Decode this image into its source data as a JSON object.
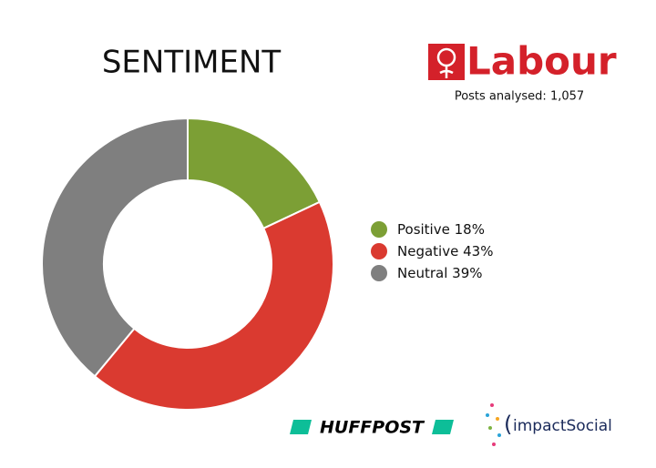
{
  "chart_data": {
    "type": "pie",
    "title": "SENTIMENT",
    "brand": "Labour",
    "subtitle": "Posts analysed: 1,057",
    "series": [
      {
        "name": "Positive",
        "color": "#7c9f35",
        "values": [
          18
        ],
        "value_labels": [
          "18%"
        ]
      },
      {
        "name": "Negative",
        "color": "#da3a30",
        "values": [
          43
        ],
        "value_labels": [
          "43%"
        ]
      },
      {
        "name": "Neutral",
        "color": "#7f7f7f",
        "values": [
          39
        ],
        "value_labels": [
          "39%"
        ]
      }
    ],
    "legend": "right",
    "logos": [
      "HUFFPOST",
      "impactSocial"
    ]
  }
}
